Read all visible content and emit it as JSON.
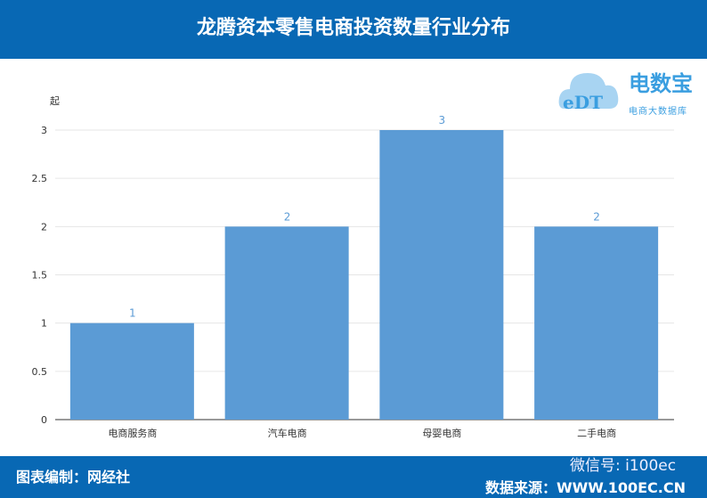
{
  "header": {
    "title": "龙腾资本零售电商投资数量行业分布"
  },
  "footer": {
    "left": "图表编制：网经社",
    "right": "数据来源：WWW.100EC.CN",
    "watermark": "微信号: i100ec"
  },
  "logo": {
    "name": "电数宝",
    "tagline": "电商大数据库",
    "mark": "eDT"
  },
  "chart_data": {
    "type": "bar",
    "categories": [
      "电商服务商",
      "汽车电商",
      "母婴电商",
      "二手电商"
    ],
    "values": [
      1,
      2,
      3,
      2
    ],
    "ylabel": "起",
    "ylim": [
      0,
      3
    ],
    "yticks": [
      0,
      0.5,
      1,
      1.5,
      2,
      2.5,
      3
    ],
    "grid": true,
    "bar_color": "#5b9bd5",
    "data_labels": true
  }
}
